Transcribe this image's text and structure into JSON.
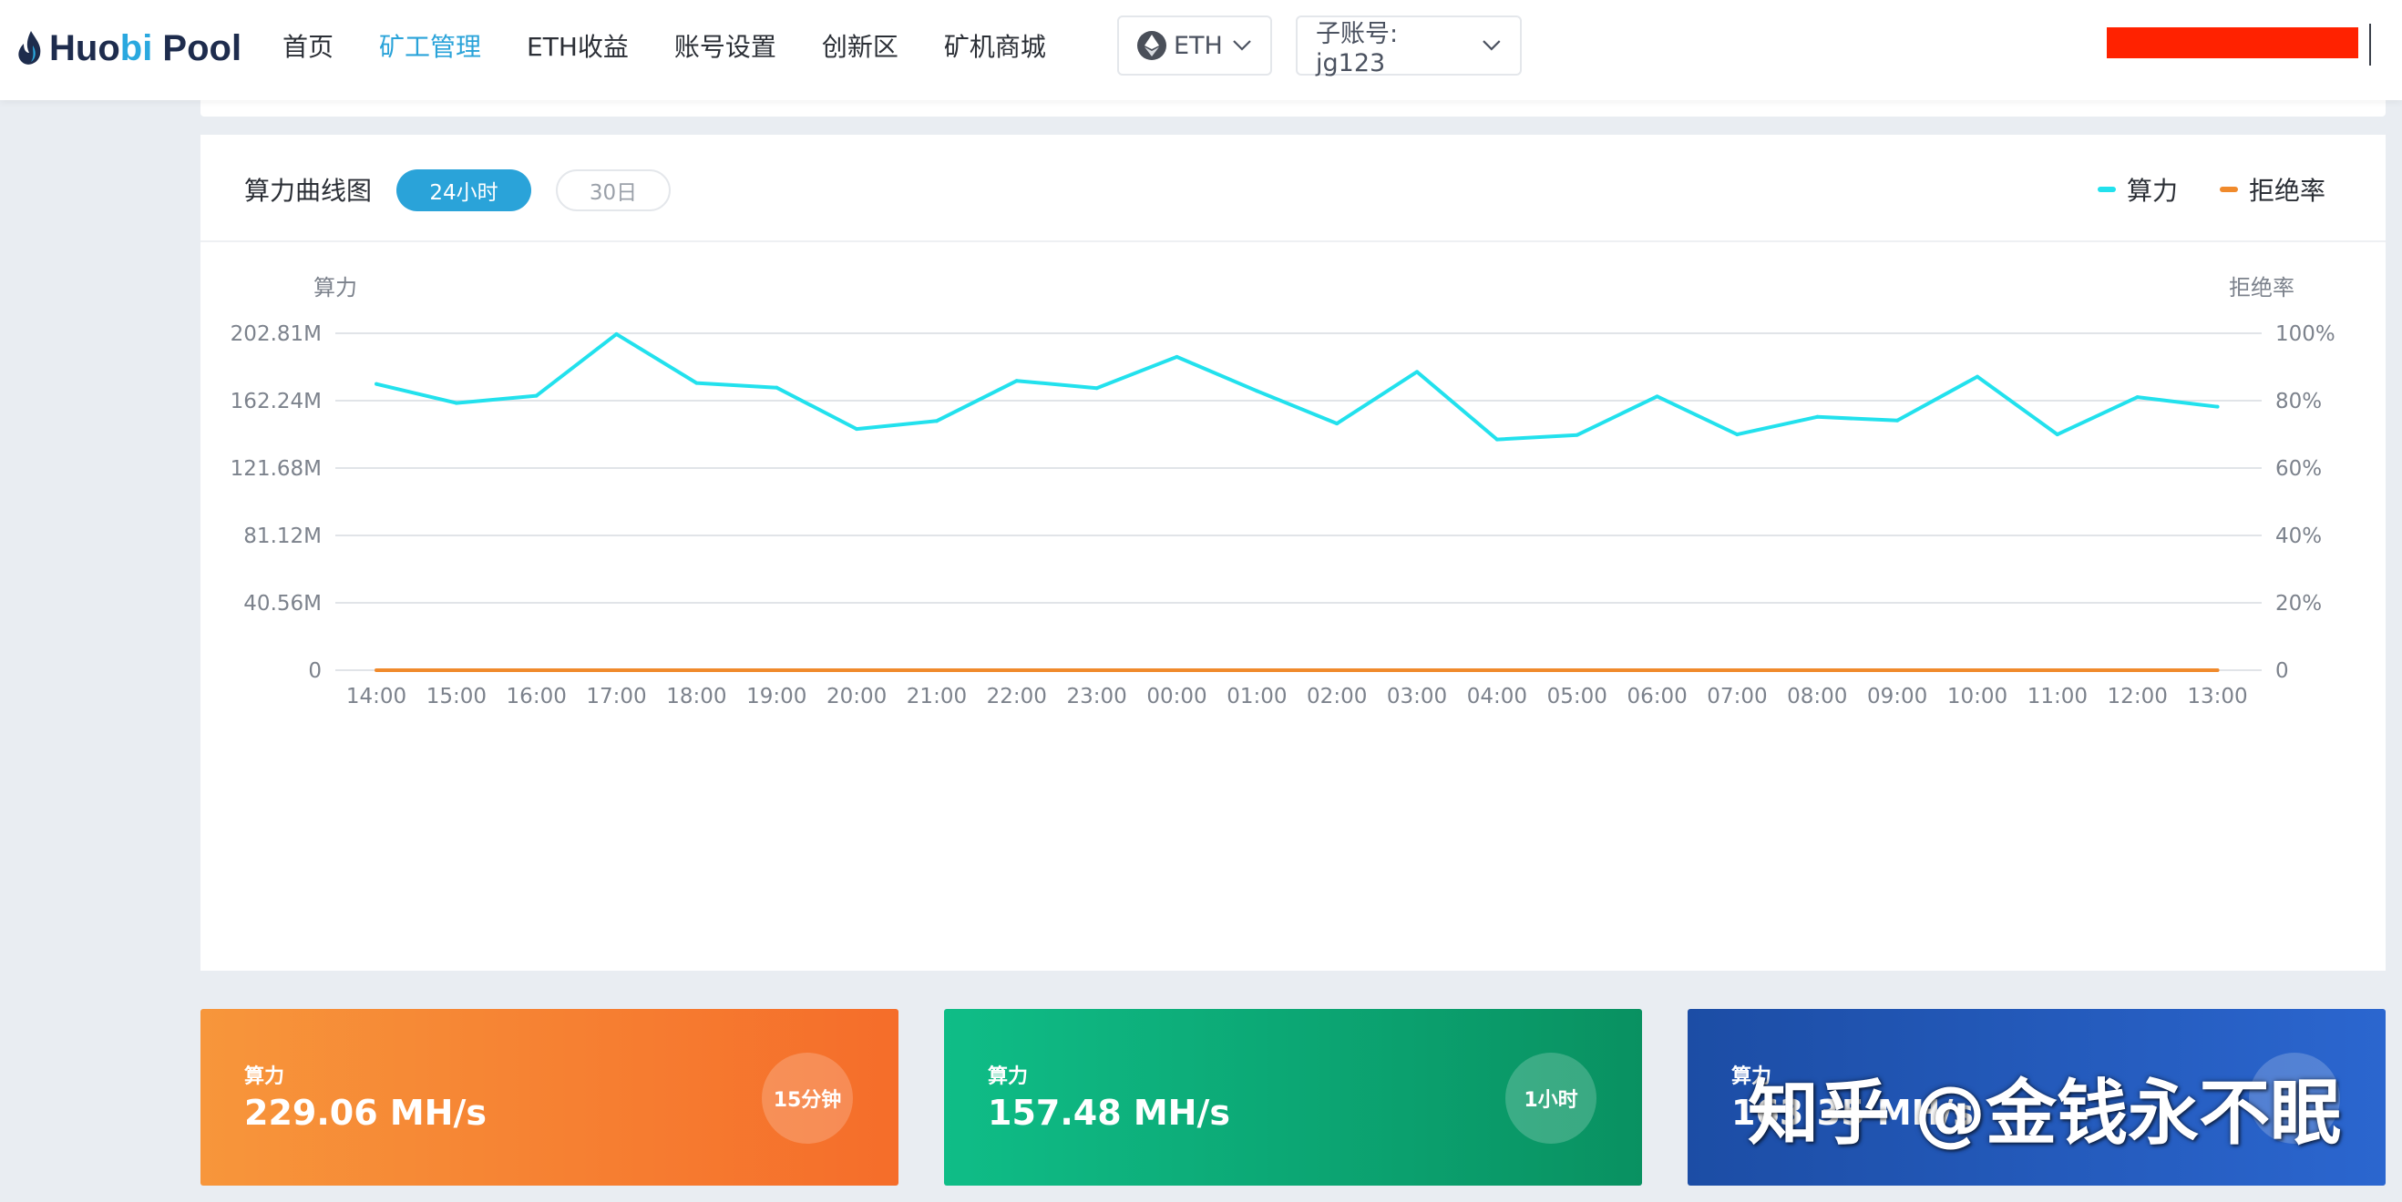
{
  "brand": {
    "logo_part1": "Huo",
    "logo_part2": "bi",
    "logo_part3": " Pool"
  },
  "nav": {
    "items": [
      {
        "label": "首页",
        "active": false
      },
      {
        "label": "矿工管理",
        "active": true
      },
      {
        "label": "ETH收益",
        "active": false
      },
      {
        "label": "账号设置",
        "active": false
      },
      {
        "label": "创新区",
        "active": false
      },
      {
        "label": "矿机商城",
        "active": false
      }
    ]
  },
  "coin_selector": {
    "value": "ETH",
    "icon": "ethereum-icon"
  },
  "account_selector": {
    "value": "子账号: jg123"
  },
  "redacted_box_color": "#ff2200",
  "chart_card": {
    "title": "算力曲线图",
    "tabs": [
      {
        "label": "24小时",
        "active": true
      },
      {
        "label": "30日",
        "active": false
      }
    ],
    "legend": [
      {
        "label": "算力",
        "color": "#22e1ed"
      },
      {
        "label": "拒绝率",
        "color": "#f08a2c"
      }
    ]
  },
  "chart_data": {
    "type": "line",
    "left_axis_label": "算力",
    "right_axis_label": "拒绝率",
    "left_ticks": [
      "0",
      "40.56M",
      "81.12M",
      "121.68M",
      "162.24M",
      "202.81M"
    ],
    "right_ticks": [
      "0",
      "20%",
      "40%",
      "60%",
      "80%",
      "100%"
    ],
    "ylim_left": [
      0,
      202.81
    ],
    "ylim_right": [
      0,
      100
    ],
    "x": [
      "14:00",
      "15:00",
      "16:00",
      "17:00",
      "18:00",
      "19:00",
      "20:00",
      "21:00",
      "22:00",
      "23:00",
      "00:00",
      "01:00",
      "02:00",
      "03:00",
      "04:00",
      "05:00",
      "06:00",
      "07:00",
      "08:00",
      "09:00",
      "10:00",
      "11:00",
      "12:00",
      "13:00"
    ],
    "grid": true,
    "legend_position": "top-right",
    "series": [
      {
        "name": "算力",
        "axis": "left",
        "color": "#22e1ed",
        "values": [
          172.3,
          160.8,
          165.2,
          202.3,
          172.9,
          170.1,
          145.2,
          150.0,
          174.2,
          169.8,
          188.6,
          168.1,
          148.5,
          179.6,
          138.9,
          141.6,
          164.8,
          141.9,
          152.5,
          150.3,
          176.7,
          141.9,
          164.4,
          158.6
        ]
      },
      {
        "name": "拒绝率",
        "axis": "right",
        "color": "#f08a2c",
        "values": [
          0,
          0,
          0,
          0,
          0,
          0,
          0,
          0,
          0,
          0,
          0,
          0,
          0,
          0,
          0,
          0,
          0,
          0,
          0,
          0,
          0,
          0,
          0,
          0
        ]
      }
    ]
  },
  "stats": [
    {
      "label": "算力",
      "value": "229.06 MH/s",
      "badge": "15分钟"
    },
    {
      "label": "算力",
      "value": "157.48 MH/s",
      "badge": "1小时"
    },
    {
      "label": "算力",
      "value": "163.35 MH/s",
      "badge": ""
    }
  ],
  "watermark": "知乎 @金钱永不眠"
}
